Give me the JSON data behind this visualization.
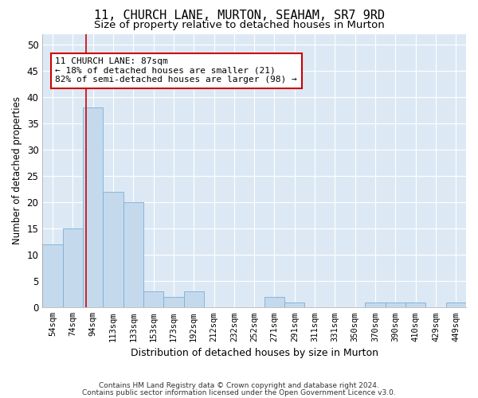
{
  "title": "11, CHURCH LANE, MURTON, SEAHAM, SR7 9RD",
  "subtitle": "Size of property relative to detached houses in Murton",
  "xlabel": "Distribution of detached houses by size in Murton",
  "ylabel": "Number of detached properties",
  "categories": [
    "54sqm",
    "74sqm",
    "94sqm",
    "113sqm",
    "133sqm",
    "153sqm",
    "173sqm",
    "192sqm",
    "212sqm",
    "232sqm",
    "252sqm",
    "271sqm",
    "291sqm",
    "311sqm",
    "331sqm",
    "350sqm",
    "370sqm",
    "390sqm",
    "410sqm",
    "429sqm",
    "449sqm"
  ],
  "values": [
    12,
    15,
    38,
    22,
    20,
    3,
    2,
    3,
    0,
    0,
    0,
    2,
    1,
    0,
    0,
    0,
    1,
    1,
    1,
    0,
    1
  ],
  "bar_color": "#c5d9ed",
  "bar_edge_color": "#7aafd4",
  "subject_label": "11 CHURCH LANE: 87sqm",
  "annotation_line1": "← 18% of detached houses are smaller (21)",
  "annotation_line2": "82% of semi-detached houses are larger (98) →",
  "annotation_box_color": "#ffffff",
  "annotation_box_edge": "#cc0000",
  "subject_vline_color": "#cc0000",
  "ylim": [
    0,
    52
  ],
  "yticks": [
    0,
    5,
    10,
    15,
    20,
    25,
    30,
    35,
    40,
    45,
    50
  ],
  "footnote1": "Contains HM Land Registry data © Crown copyright and database right 2024.",
  "footnote2": "Contains public sector information licensed under the Open Government Licence v3.0.",
  "fig_bg_color": "#ffffff",
  "plot_bg_color": "#dce9f5",
  "title_fontsize": 11,
  "subtitle_fontsize": 9.5
}
